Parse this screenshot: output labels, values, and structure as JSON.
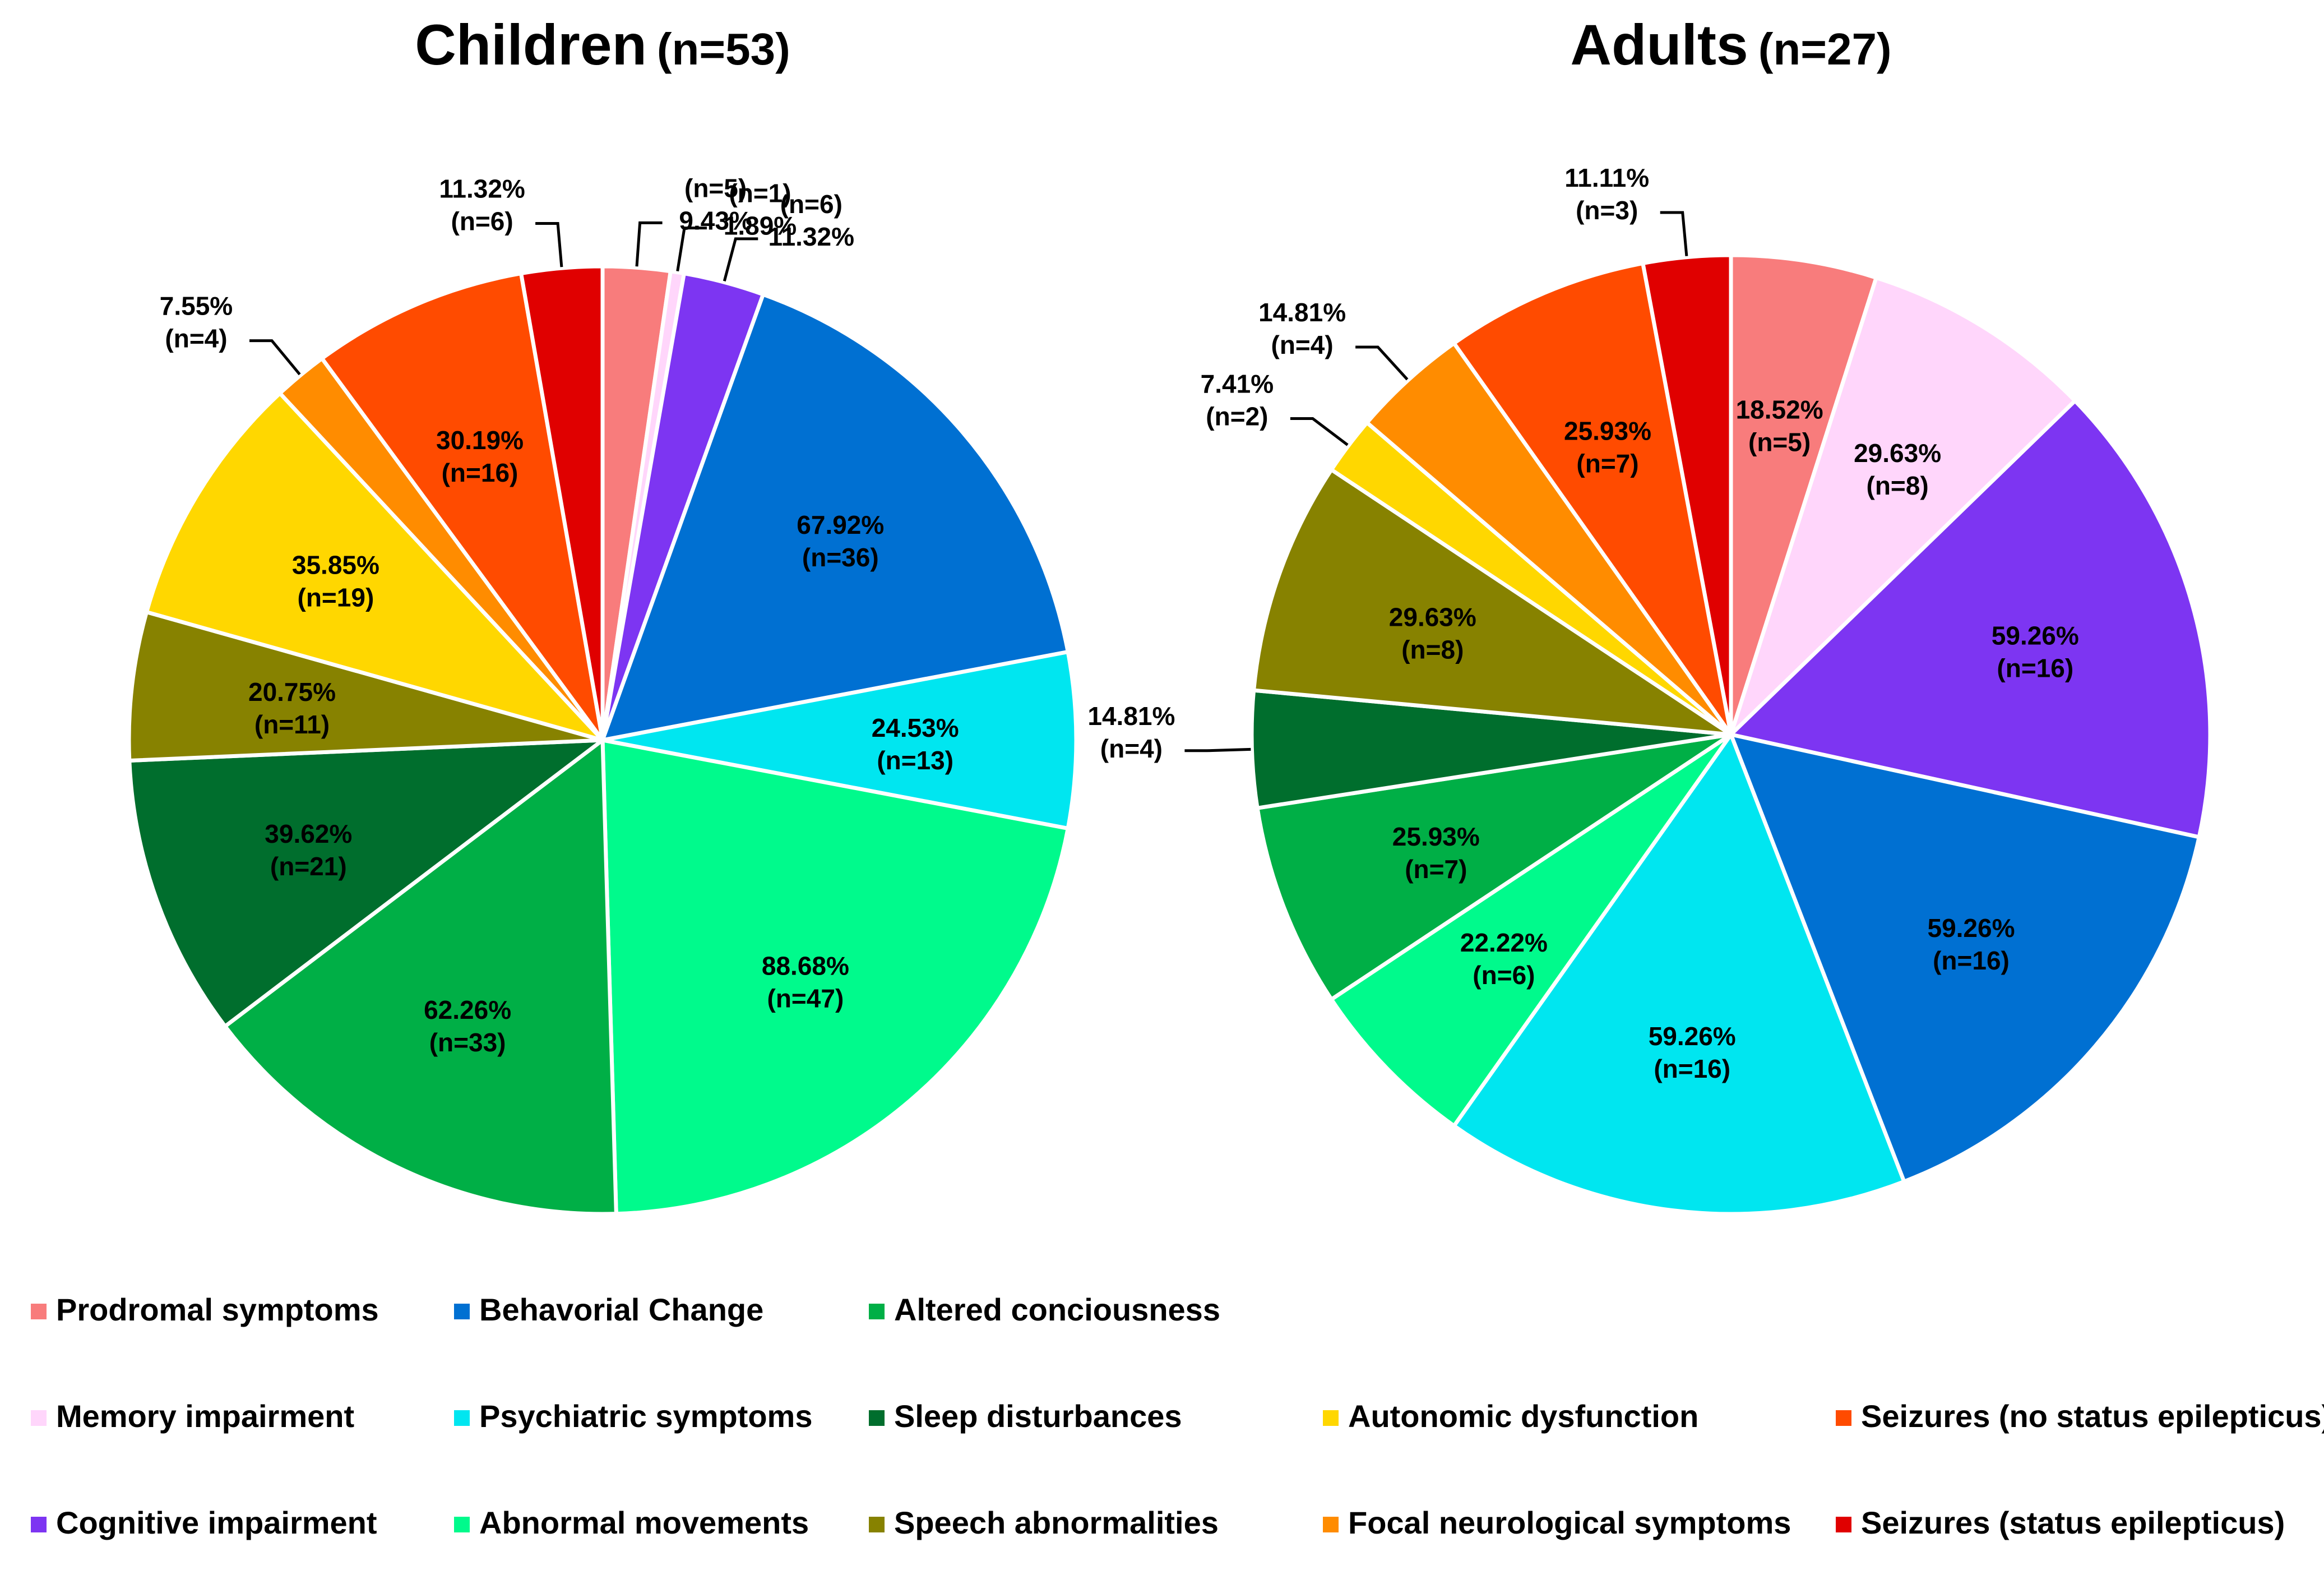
{
  "categories": [
    {
      "key": "prodromal",
      "label": "Prodromal symptoms",
      "color": "#F87C7C"
    },
    {
      "key": "memory",
      "label": "Memory impairment",
      "color": "#FFD6FB"
    },
    {
      "key": "cognitive",
      "label": "Cognitive impairment",
      "color": "#7D35F2"
    },
    {
      "key": "behavioral",
      "label": "Behavorial Change",
      "color": "#0070D2"
    },
    {
      "key": "psychiatric",
      "label": "Psychiatric symptoms",
      "color": "#00E6F0"
    },
    {
      "key": "abnormal",
      "label": "Abnormal movements",
      "color": "#00FA8C"
    },
    {
      "key": "altered",
      "label": "Altered conciousness",
      "color": "#00AF46"
    },
    {
      "key": "sleep",
      "label": "Sleep disturbances",
      "color": "#006E2D"
    },
    {
      "key": "speech",
      "label": "Speech abnormalities",
      "color": "#878200"
    },
    {
      "key": "autonomic",
      "label": "Autonomic dysfunction",
      "color": "#FFD700"
    },
    {
      "key": "focal",
      "label": "Focal neurological symptoms",
      "color": "#FF8C00"
    },
    {
      "key": "seizures_no_se",
      "label": "Seizures (no status epilepticus)",
      "color": "#FF4B00"
    },
    {
      "key": "seizures_se",
      "label": "Seizures (status epilepticus)",
      "color": "#E00000"
    }
  ],
  "chart_data": [
    {
      "type": "pie",
      "title": "Children",
      "subtitle": "(n=53)",
      "slices": [
        {
          "category": "prodromal",
          "value": 5,
          "label": "9.43%",
          "count": "(n=5)"
        },
        {
          "category": "memory",
          "value": 1,
          "label": "1.89%",
          "count": "(n=1)"
        },
        {
          "category": "cognitive",
          "value": 6,
          "label": "11.32%",
          "count": "(n=6)"
        },
        {
          "category": "behavioral",
          "value": 36,
          "label": "67.92%",
          "count": "(n=36)"
        },
        {
          "category": "psychiatric",
          "value": 13,
          "label": "24.53%",
          "count": "(n=13)"
        },
        {
          "category": "abnormal",
          "value": 47,
          "label": "88.68%",
          "count": "(n=47)"
        },
        {
          "category": "altered",
          "value": 33,
          "label": "62.26%",
          "count": "(n=33)"
        },
        {
          "category": "sleep",
          "value": 21,
          "label": "39.62%",
          "count": "(n=21)"
        },
        {
          "category": "speech",
          "value": 11,
          "label": "20.75%",
          "count": "(n=11)"
        },
        {
          "category": "autonomic",
          "value": 19,
          "label": "35.85%",
          "count": "(n=19)"
        },
        {
          "category": "focal",
          "value": 4,
          "label": "7.55%",
          "count": "(n=4)"
        },
        {
          "category": "seizures_no_se",
          "value": 16,
          "label": "30.19%",
          "count": "(n=16)"
        },
        {
          "category": "seizures_se",
          "value": 6,
          "label": "11.32%",
          "count": "(n=6)"
        }
      ]
    },
    {
      "type": "pie",
      "title": "Adults",
      "subtitle": "(n=27)",
      "slices": [
        {
          "category": "prodromal",
          "value": 5,
          "label": "18.52%",
          "count": "(n=5)"
        },
        {
          "category": "memory",
          "value": 8,
          "label": "29.63%",
          "count": "(n=8)"
        },
        {
          "category": "cognitive",
          "value": 16,
          "label": "59.26%",
          "count": "(n=16)"
        },
        {
          "category": "behavioral",
          "value": 16,
          "label": "59.26%",
          "count": "(n=16)"
        },
        {
          "category": "psychiatric",
          "value": 16,
          "label": "59.26%",
          "count": "(n=16)"
        },
        {
          "category": "abnormal",
          "value": 6,
          "label": "22.22%",
          "count": "(n=6)"
        },
        {
          "category": "altered",
          "value": 7,
          "label": "25.93%",
          "count": "(n=7)"
        },
        {
          "category": "sleep",
          "value": 4,
          "label": "14.81%",
          "count": "(n=4)"
        },
        {
          "category": "speech",
          "value": 8,
          "label": "29.63%",
          "count": "(n=8)"
        },
        {
          "category": "autonomic",
          "value": 2,
          "label": "7.41%",
          "count": "(n=2)"
        },
        {
          "category": "focal",
          "value": 4,
          "label": "14.81%",
          "count": "(n=4)"
        },
        {
          "category": "seizures_no_se",
          "value": 7,
          "label": "25.93%",
          "count": "(n=7)"
        },
        {
          "category": "seizures_se",
          "value": 3,
          "label": "11.11%",
          "count": "(n=3)"
        }
      ]
    }
  ],
  "legend": {
    "rows": [
      [
        "prodromal",
        "behavioral",
        "altered"
      ],
      [
        "memory",
        "psychiatric",
        "sleep",
        "autonomic",
        "seizures_no_se"
      ],
      [
        "cognitive",
        "abnormal",
        "speech",
        "focal",
        "seizures_se"
      ]
    ]
  }
}
